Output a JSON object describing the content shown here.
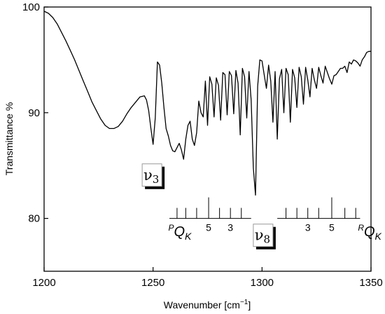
{
  "chart_data": {
    "type": "line",
    "xlabel": "Wavenumber [cm",
    "xlabel_sup": "−1",
    "xlabel_close": "]",
    "ylabel": "Transmittance %",
    "xlim": [
      1200,
      1350
    ],
    "ylim": [
      75,
      100
    ],
    "xticks": [
      1200,
      1250,
      1300,
      1350
    ],
    "yticks": [
      80,
      90,
      100
    ],
    "grid": false,
    "series": [
      {
        "x": [
          1200,
          1202,
          1204,
          1206,
          1208,
          1210,
          1212,
          1214,
          1216,
          1218,
          1220,
          1222,
          1224,
          1226,
          1228,
          1230,
          1232,
          1234,
          1236,
          1238,
          1240,
          1242,
          1244,
          1246,
          1247,
          1248,
          1249,
          1250,
          1251,
          1252,
          1253,
          1254,
          1255,
          1256,
          1257,
          1258,
          1259,
          1260,
          1261,
          1262,
          1263,
          1264,
          1265,
          1266,
          1267,
          1268,
          1269,
          1270,
          1271,
          1272,
          1273,
          1274,
          1275,
          1276,
          1277,
          1278,
          1279,
          1280,
          1281,
          1282,
          1283,
          1284,
          1285,
          1286,
          1287,
          1288,
          1289,
          1290,
          1291,
          1292,
          1293,
          1294,
          1295,
          1296,
          1297,
          1298,
          1299,
          1300,
          1301,
          1302,
          1303,
          1304,
          1305,
          1306,
          1307,
          1308,
          1309,
          1310,
          1311,
          1312,
          1313,
          1314,
          1315,
          1316,
          1317,
          1318,
          1319,
          1320,
          1321,
          1322,
          1323,
          1324,
          1325,
          1326,
          1327,
          1328,
          1329,
          1330,
          1331,
          1332,
          1333,
          1334,
          1335,
          1336,
          1337,
          1338,
          1339,
          1340,
          1341,
          1342,
          1343,
          1344,
          1345,
          1346,
          1347,
          1348,
          1349,
          1350
        ],
        "y": [
          99.6,
          99.4,
          99.0,
          98.4,
          97.6,
          96.8,
          95.9,
          95.0,
          94.0,
          93.0,
          92.0,
          91.0,
          90.2,
          89.4,
          88.8,
          88.5,
          88.5,
          88.7,
          89.2,
          89.9,
          90.5,
          91.0,
          91.5,
          91.6,
          91.2,
          90.2,
          88.5,
          87.0,
          89.5,
          94.8,
          94.5,
          92.8,
          90.5,
          88.5,
          87.8,
          86.9,
          86.4,
          86.3,
          86.7,
          87.1,
          86.5,
          85.6,
          87.5,
          88.8,
          89.2,
          87.5,
          86.9,
          88.1,
          91.1,
          90.0,
          89.6,
          93.0,
          88.8,
          93.4,
          92.7,
          89.6,
          93.3,
          92.6,
          89.3,
          93.8,
          93.6,
          89.8,
          93.9,
          93.5,
          89.9,
          94.0,
          92.8,
          87.9,
          94.2,
          93.4,
          89.5,
          93.9,
          91.2,
          84.8,
          82.2,
          92.5,
          95.0,
          94.9,
          93.6,
          92.3,
          94.5,
          93.0,
          89.1,
          93.9,
          87.5,
          93.2,
          94.1,
          90.0,
          94.2,
          93.6,
          89.1,
          94.1,
          93.3,
          90.5,
          94.3,
          93.4,
          90.8,
          94.3,
          93.1,
          91.5,
          94.2,
          93.1,
          92.3,
          94.3,
          93.5,
          92.8,
          94.4,
          93.8,
          93.2,
          92.7,
          93.5,
          93.6,
          93.9,
          94.2,
          94.2,
          94.4,
          93.8,
          94.8,
          94.6,
          95.0,
          94.9,
          94.7,
          94.4,
          95.0,
          95.3,
          95.7,
          95.8,
          95.8
        ]
      }
    ],
    "annotations": [
      {
        "text": "ν",
        "sub": "3",
        "x": 1249.5,
        "y": 84.1
      },
      {
        "text": "ν",
        "sub": "8",
        "x": 1300.5,
        "y": 78.4
      }
    ],
    "branches": [
      {
        "prefix": "P",
        "letter": "Q",
        "sub": "K",
        "line_from": 1257.5,
        "line_to": 1295,
        "ticks": [
          1261,
          1265,
          1270,
          1275.5,
          1280.5,
          1285.5,
          1290.5
        ],
        "long_tick": 1275.5,
        "numbers": [
          {
            "text": "5",
            "x": 1275.5
          },
          {
            "text": "3",
            "x": 1285.5
          }
        ],
        "label_x": 1257,
        "label_y": 78.3
      },
      {
        "prefix": "R",
        "letter": "Q",
        "sub": "K",
        "line_from": 1307,
        "line_to": 1345,
        "ticks": [
          1311,
          1316,
          1321,
          1326,
          1332,
          1338,
          1343
        ],
        "long_tick": 1332,
        "numbers": [
          {
            "text": "3",
            "x": 1321
          },
          {
            "text": "5",
            "x": 1332
          }
        ],
        "label_x": 1344,
        "label_y": 78.3
      }
    ]
  }
}
